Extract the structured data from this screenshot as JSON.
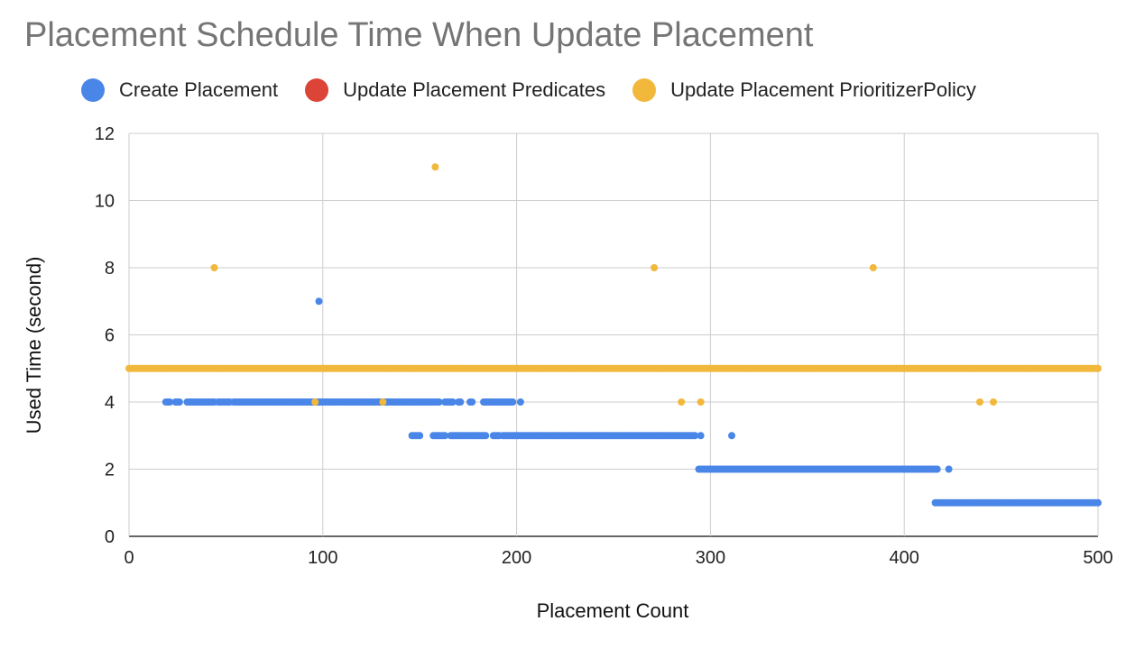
{
  "chart_data": {
    "type": "scatter",
    "title": "Placement Schedule Time When Update Placement",
    "xlabel": "Placement Count",
    "ylabel": "Used Time (second)",
    "xlim": [
      0,
      500
    ],
    "ylim": [
      0,
      12
    ],
    "xticks": [
      0,
      100,
      200,
      300,
      400,
      500
    ],
    "yticks": [
      0,
      2,
      4,
      6,
      8,
      10,
      12
    ],
    "grid": true,
    "legend_position": "top",
    "series": [
      {
        "name": "Create Placement",
        "color": "#4a86e8",
        "segments": [
          {
            "y": 4,
            "x_from": 19,
            "x_to": 21,
            "step": 1
          },
          {
            "y": 4,
            "x_from": 24,
            "x_to": 26,
            "step": 1
          },
          {
            "y": 4,
            "x_from": 30,
            "x_to": 44,
            "step": 1
          },
          {
            "y": 4,
            "x_from": 46,
            "x_to": 52,
            "step": 1
          },
          {
            "y": 4,
            "x_from": 54,
            "x_to": 160,
            "step": 1
          },
          {
            "y": 4,
            "x_from": 163,
            "x_to": 167,
            "step": 1
          },
          {
            "y": 4,
            "x_from": 170,
            "x_to": 171,
            "step": 1
          },
          {
            "y": 4,
            "x_from": 176,
            "x_to": 177,
            "step": 1
          },
          {
            "y": 4,
            "x_from": 183,
            "x_to": 198,
            "step": 1
          },
          {
            "y": 3,
            "x_from": 146,
            "x_to": 150,
            "step": 1
          },
          {
            "y": 3,
            "x_from": 157,
            "x_to": 163,
            "step": 1
          },
          {
            "y": 3,
            "x_from": 166,
            "x_to": 184,
            "step": 1
          },
          {
            "y": 3,
            "x_from": 188,
            "x_to": 191,
            "step": 1
          },
          {
            "y": 3,
            "x_from": 193,
            "x_to": 292,
            "step": 1
          },
          {
            "y": 2,
            "x_from": 294,
            "x_to": 417,
            "step": 1
          },
          {
            "y": 1,
            "x_from": 416,
            "x_to": 500,
            "step": 1
          }
        ],
        "points": [
          [
            98,
            7
          ],
          [
            202,
            4
          ],
          [
            295,
            3
          ],
          [
            311,
            3
          ],
          [
            423,
            2
          ]
        ]
      },
      {
        "name": "Update Placement Predicates",
        "color": "#db4437",
        "segments": [],
        "points": []
      },
      {
        "name": "Update Placement PrioritizerPolicy",
        "color": "#f1b83c",
        "segments": [
          {
            "y": 5,
            "x_from": 0,
            "x_to": 500,
            "step": 1
          }
        ],
        "points": [
          [
            44,
            8
          ],
          [
            96,
            4
          ],
          [
            131,
            4
          ],
          [
            158,
            11
          ],
          [
            271,
            8
          ],
          [
            285,
            4
          ],
          [
            295,
            4
          ],
          [
            384,
            8
          ],
          [
            439,
            4
          ],
          [
            446,
            4
          ]
        ]
      }
    ]
  }
}
